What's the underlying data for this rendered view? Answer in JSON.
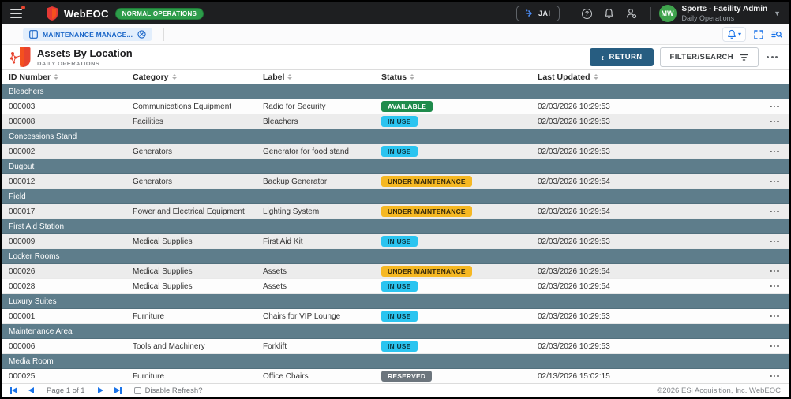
{
  "topbar": {
    "brand": "WebEOC",
    "status_badge": "NORMAL OPERATIONS",
    "jai_label": "JAI",
    "user": {
      "initials": "MW",
      "name": "Sports - Facility Admin",
      "role": "Daily Operations"
    }
  },
  "tabbar": {
    "tab_label": "MAINTENANCE MANAGE..."
  },
  "board": {
    "title": "Assets By Location",
    "subtitle": "DAILY OPERATIONS",
    "return_label": "RETURN",
    "filter_label": "FILTER/SEARCH"
  },
  "table": {
    "columns": [
      "ID Number",
      "Category",
      "Label",
      "Status",
      "Last Updated"
    ],
    "groups": [
      {
        "name": "Bleachers",
        "rows": [
          {
            "id": "000003",
            "category": "Communications Equipment",
            "label": "Radio for Security",
            "status": "AVAILABLE",
            "updated": "02/03/2026 10:29:53"
          },
          {
            "id": "000008",
            "category": "Facilities",
            "label": "Bleachers",
            "status": "IN USE",
            "updated": "02/03/2026 10:29:53"
          }
        ]
      },
      {
        "name": "Concessions Stand",
        "rows": [
          {
            "id": "000002",
            "category": "Generators",
            "label": "Generator for food stand",
            "status": "IN USE",
            "updated": "02/03/2026 10:29:53"
          }
        ]
      },
      {
        "name": "Dugout",
        "rows": [
          {
            "id": "000012",
            "category": "Generators",
            "label": "Backup Generator",
            "status": "UNDER MAINTENANCE",
            "updated": "02/03/2026 10:29:54"
          }
        ]
      },
      {
        "name": "Field",
        "rows": [
          {
            "id": "000017",
            "category": "Power and Electrical Equipment",
            "label": "Lighting System",
            "status": "UNDER MAINTENANCE",
            "updated": "02/03/2026 10:29:54"
          }
        ]
      },
      {
        "name": "First Aid Station",
        "rows": [
          {
            "id": "000009",
            "category": "Medical Supplies",
            "label": "First Aid Kit",
            "status": "IN USE",
            "updated": "02/03/2026 10:29:53"
          }
        ]
      },
      {
        "name": "Locker Rooms",
        "rows": [
          {
            "id": "000026",
            "category": "Medical Supplies",
            "label": "Assets",
            "status": "UNDER MAINTENANCE",
            "updated": "02/03/2026 10:29:54"
          },
          {
            "id": "000028",
            "category": "Medical Supplies",
            "label": "Assets",
            "status": "IN USE",
            "updated": "02/03/2026 10:29:54"
          }
        ]
      },
      {
        "name": "Luxury Suites",
        "rows": [
          {
            "id": "000001",
            "category": "Furniture",
            "label": "Chairs for VIP Lounge",
            "status": "IN USE",
            "updated": "02/03/2026 10:29:53"
          }
        ]
      },
      {
        "name": "Maintenance Area",
        "rows": [
          {
            "id": "000006",
            "category": "Tools and Machinery",
            "label": "Forklift",
            "status": "IN USE",
            "updated": "02/03/2026 10:29:53"
          }
        ]
      },
      {
        "name": "Media Room",
        "rows": [
          {
            "id": "000025",
            "category": "Furniture",
            "label": "Office Chairs",
            "status": "RESERVED",
            "updated": "02/13/2026 15:02:15"
          }
        ]
      }
    ]
  },
  "status_colors": {
    "AVAILABLE": {
      "bg": "#1f8b4c",
      "fg": "#ffffff"
    },
    "IN USE": {
      "bg": "#2bc4f0",
      "fg": "#0d3742"
    },
    "UNDER MAINTENANCE": {
      "bg": "#f6b823",
      "fg": "#35290a"
    },
    "RESERVED": {
      "bg": "#6c757d",
      "fg": "#ffffff"
    }
  },
  "colors": {
    "accent_blue": "#1a73e8",
    "return_button": "#275d81",
    "group_header": "#5e7d8b",
    "badge_green": "#2d9c4a",
    "brand_red": "#e53935",
    "avatar_green": "#3fa34d"
  },
  "footer": {
    "page_text": "Page 1 of 1",
    "disable_refresh_label": "Disable Refresh?",
    "copyright": "©2026 ESi Acquisition, Inc. WebEOC"
  }
}
